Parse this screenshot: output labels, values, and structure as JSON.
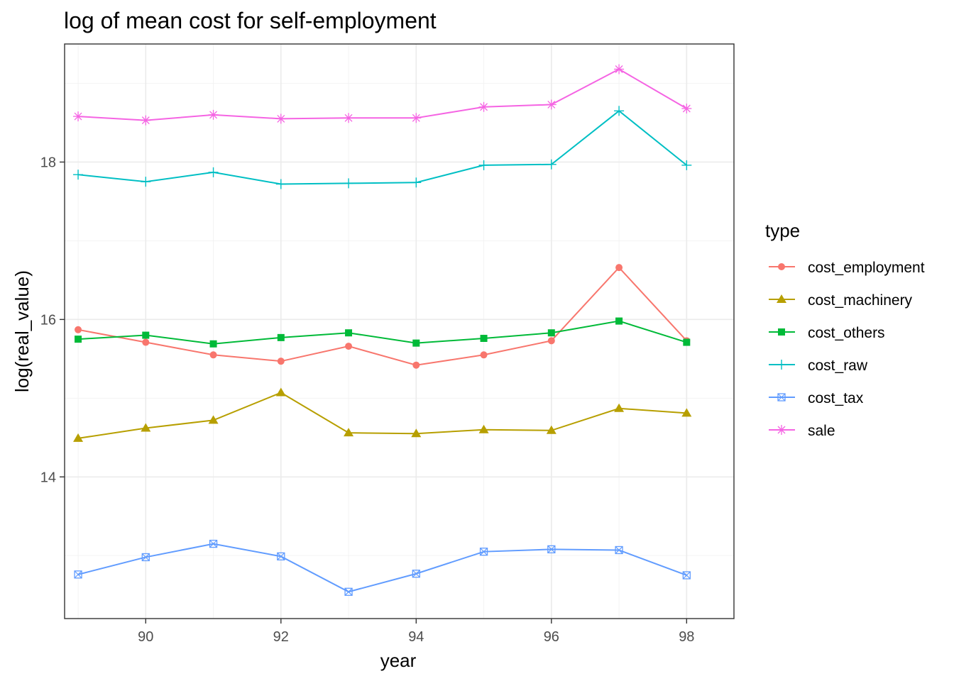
{
  "chart_data": {
    "type": "line",
    "title": "log of mean cost for self-employment",
    "xlabel": "year",
    "ylabel": "log(real_value)",
    "xlim": [
      88.8,
      98.7
    ],
    "ylim": [
      12.2,
      19.5
    ],
    "x_ticks": [
      90,
      92,
      94,
      96,
      98
    ],
    "y_ticks": [
      14,
      16,
      18
    ],
    "grid": true,
    "legend": {
      "title": "type",
      "position": "right"
    },
    "x": [
      89,
      90,
      91,
      92,
      93,
      94,
      95,
      96,
      97,
      98
    ],
    "series": [
      {
        "name": "cost_employment",
        "color": "#F8766D",
        "marker": "circle",
        "values": [
          15.87,
          15.71,
          15.55,
          15.47,
          15.66,
          15.42,
          15.55,
          15.73,
          16.66,
          15.73
        ]
      },
      {
        "name": "cost_machinery",
        "color": "#B79F00",
        "marker": "triangle",
        "values": [
          14.49,
          14.62,
          14.72,
          15.07,
          14.56,
          14.55,
          14.6,
          14.59,
          14.87,
          14.81
        ]
      },
      {
        "name": "cost_others",
        "color": "#00BA38",
        "marker": "square",
        "values": [
          15.75,
          15.8,
          15.69,
          15.77,
          15.83,
          15.7,
          15.76,
          15.83,
          15.98,
          15.71
        ]
      },
      {
        "name": "cost_raw",
        "color": "#00BFC4",
        "marker": "plus",
        "values": [
          17.84,
          17.75,
          17.87,
          17.72,
          17.73,
          17.74,
          17.96,
          17.97,
          18.65,
          17.96
        ]
      },
      {
        "name": "cost_tax",
        "color": "#619CFF",
        "marker": "square-cross",
        "values": [
          12.76,
          12.98,
          13.15,
          12.99,
          12.54,
          12.77,
          13.05,
          13.08,
          13.07,
          12.75
        ]
      },
      {
        "name": "sale",
        "color": "#F564E3",
        "marker": "asterisk",
        "values": [
          18.58,
          18.53,
          18.6,
          18.55,
          18.56,
          18.56,
          18.7,
          18.73,
          19.18,
          18.68
        ]
      }
    ]
  }
}
